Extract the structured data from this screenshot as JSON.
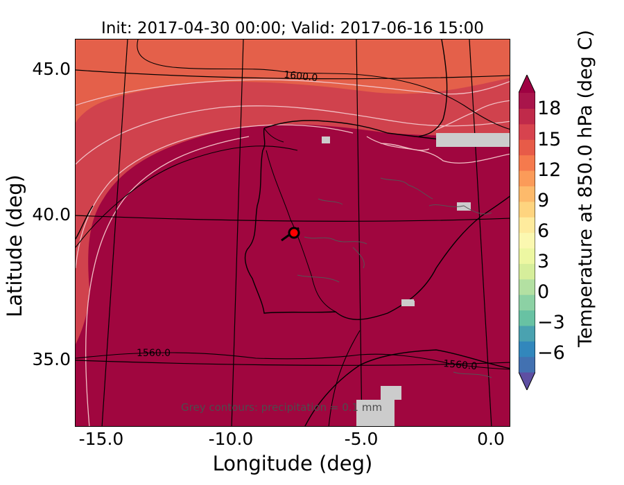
{
  "title": "Init: 2017-04-30 00:00; Valid: 2017-06-16 15:00",
  "axes": {
    "xlabel": "Longitude (deg)",
    "ylabel": "Latitude (deg)",
    "xticks": [
      "-15.0",
      "-10.0",
      "-5.0",
      "0.0"
    ],
    "yticks": [
      "45.0",
      "40.0",
      "35.0"
    ]
  },
  "contours": {
    "geopotential_labels": [
      "1600.0",
      "1560.0",
      "1560.0"
    ],
    "note": "Grey contours: precipitation = 0.1 mm"
  },
  "colorbar": {
    "label": "Temperature at 850.0 hPa (deg C)",
    "ticks": [
      "18",
      "15",
      "12",
      "9",
      "6",
      "3",
      "0",
      "−3",
      "−6"
    ],
    "colors": [
      "#5e4fa2",
      "#4271b1",
      "#3287bc",
      "#4aa2b0",
      "#68c2a3",
      "#8cd1a4",
      "#b3e0a2",
      "#d6ee9b",
      "#edf7a2",
      "#fbf8b0",
      "#feeb9d",
      "#fed47f",
      "#fdba6b",
      "#fb9b59",
      "#f57a4d",
      "#e75b48",
      "#d7434e",
      "#c02a4a",
      "#a9154b",
      "#9e0142"
    ],
    "extend": "both"
  },
  "marker": {
    "longitude": -7.5,
    "latitude": 39.3,
    "color": "#ff0000"
  },
  "map_colors": {
    "dominant": "#a0063f",
    "warm_orange": "#e4604a",
    "mid_red": "#d0424d",
    "light_contour": "#f2c0c5",
    "masked_grey": "#cccccc"
  }
}
